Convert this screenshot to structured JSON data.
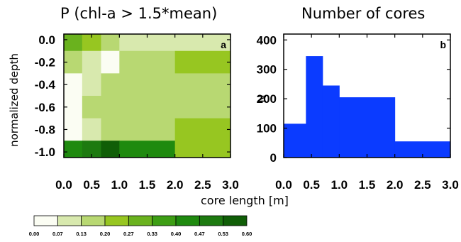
{
  "chart_data": [
    {
      "type": "heatmap",
      "title": "P (chl-a > 1.5*mean)",
      "panel_label": "a",
      "xlabel": "core length [m]",
      "ylabel": "normalized depth",
      "xlim": [
        0.0,
        3.0
      ],
      "ylim": [
        -1.05,
        0.05
      ],
      "x_ticks": [
        "0.0",
        "0.5",
        "1.0",
        "1.5",
        "2.0",
        "2.5",
        "3.0"
      ],
      "y_ticks": [
        "0.0",
        "-0.2",
        "-0.4",
        "-0.6",
        "-0.8",
        "-1.0"
      ],
      "x_edges": [
        0.0,
        0.33,
        0.67,
        1.0,
        2.0,
        3.0
      ],
      "y_edges": [
        0.05,
        -0.1,
        -0.3,
        -0.5,
        -0.7,
        -0.9,
        -1.05
      ],
      "values": [
        [
          0.27,
          0.2,
          0.13,
          0.07,
          0.07
        ],
        [
          0.13,
          0.07,
          0.0,
          0.13,
          0.2
        ],
        [
          0.0,
          0.07,
          0.13,
          0.13,
          0.13
        ],
        [
          0.0,
          0.13,
          0.13,
          0.13,
          0.13
        ],
        [
          0.0,
          0.07,
          0.13,
          0.13,
          0.2
        ],
        [
          0.4,
          0.47,
          0.53,
          0.4,
          0.2
        ]
      ],
      "colorbar": {
        "levels": [
          "0.00",
          "0.07",
          "0.13",
          "0.20",
          "0.27",
          "0.33",
          "0.40",
          "0.47",
          "0.53",
          "0.60"
        ],
        "colors": [
          "#fbfdf3",
          "#d8e9ae",
          "#b8d872",
          "#97c621",
          "#6ab21e",
          "#3d9e14",
          "#1f8a0f",
          "#1d7a10",
          "#105e07"
        ]
      }
    },
    {
      "type": "bar",
      "title": "Number of cores",
      "panel_label": "b",
      "xlabel": "core length [m]",
      "ylabel": "N",
      "xlim": [
        0.0,
        3.0
      ],
      "ylim": [
        0,
        420
      ],
      "x_ticks": [
        "0.0",
        "0.5",
        "1.0",
        "1.5",
        "2.0",
        "2.5",
        "3.0"
      ],
      "y_ticks": [
        "0",
        "100",
        "200",
        "300",
        "400"
      ],
      "bins": [
        {
          "x0": 0.0,
          "x1": 0.4,
          "value": 115
        },
        {
          "x0": 0.4,
          "x1": 0.7,
          "value": 345
        },
        {
          "x0": 0.7,
          "x1": 1.0,
          "value": 245
        },
        {
          "x0": 1.0,
          "x1": 2.0,
          "value": 205
        },
        {
          "x0": 2.0,
          "x1": 3.0,
          "value": 55
        }
      ],
      "color": "#0b3bff"
    }
  ]
}
